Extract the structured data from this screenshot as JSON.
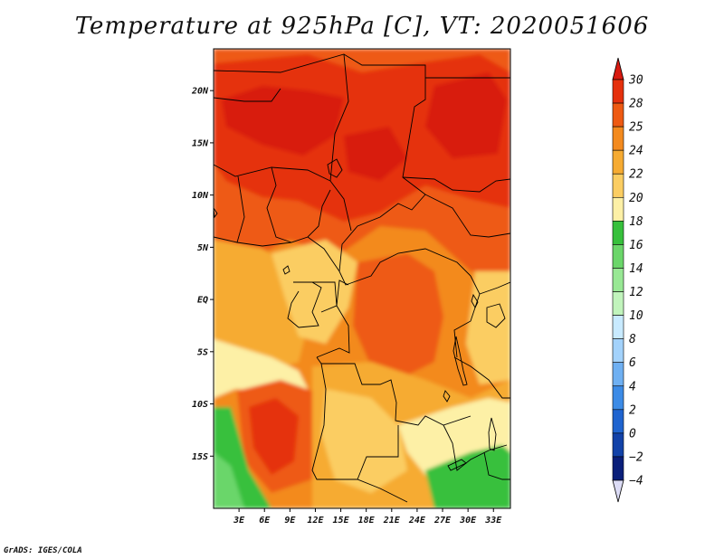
{
  "title": "Temperature at 925hPa [C], VT: 2020051606",
  "credit": "GrADS: IGES/COLA",
  "map": {
    "lon_range": [
      0,
      35
    ],
    "lat_range": [
      -20,
      24
    ],
    "lat_ticks": [
      {
        "value": 20,
        "label": "20N"
      },
      {
        "value": 15,
        "label": "15N"
      },
      {
        "value": 10,
        "label": "10N"
      },
      {
        "value": 5,
        "label": "5N"
      },
      {
        "value": 0,
        "label": "EQ"
      },
      {
        "value": -5,
        "label": "5S"
      },
      {
        "value": -10,
        "label": "10S"
      },
      {
        "value": -15,
        "label": "15S"
      }
    ],
    "lon_ticks": [
      {
        "value": 3,
        "label": "3E"
      },
      {
        "value": 6,
        "label": "6E"
      },
      {
        "value": 9,
        "label": "9E"
      },
      {
        "value": 12,
        "label": "12E"
      },
      {
        "value": 15,
        "label": "15E"
      },
      {
        "value": 18,
        "label": "18E"
      },
      {
        "value": 21,
        "label": "21E"
      },
      {
        "value": 24,
        "label": "24E"
      },
      {
        "value": 27,
        "label": "27E"
      },
      {
        "value": 30,
        "label": "30E"
      },
      {
        "value": 33,
        "label": "33E"
      }
    ]
  },
  "colorbar": {
    "labels": [
      "30",
      "28",
      "25",
      "24",
      "22",
      "20",
      "18",
      "16",
      "14",
      "12",
      "10",
      "8",
      "6",
      "4",
      "2",
      "0",
      "−2",
      "−4"
    ],
    "colors": {
      "over": "#d81a10",
      "under": "#dcdcf6",
      "bands": [
        "#e5300c",
        "#ee5a12",
        "#f38a1e",
        "#f6ab32",
        "#fbcd62",
        "#fdf0a6",
        "#37c03c",
        "#6bd66a",
        "#98e894",
        "#c1f4bc",
        "#c8eaff",
        "#a3d2fb",
        "#6fb0f2",
        "#3c8be6",
        "#1f64cf",
        "#1242a8",
        "#0a1f7a"
      ]
    }
  },
  "field_colors": {
    "t30": "#d81a10",
    "t28": "#e5300c",
    "t25": "#ee5a12",
    "t24": "#f38a1e",
    "t22": "#f6ab32",
    "t20": "#fbcd62",
    "t18": "#fdf0a6",
    "t16": "#37c03c",
    "t14": "#6bd66a",
    "t12": "#98e894"
  }
}
